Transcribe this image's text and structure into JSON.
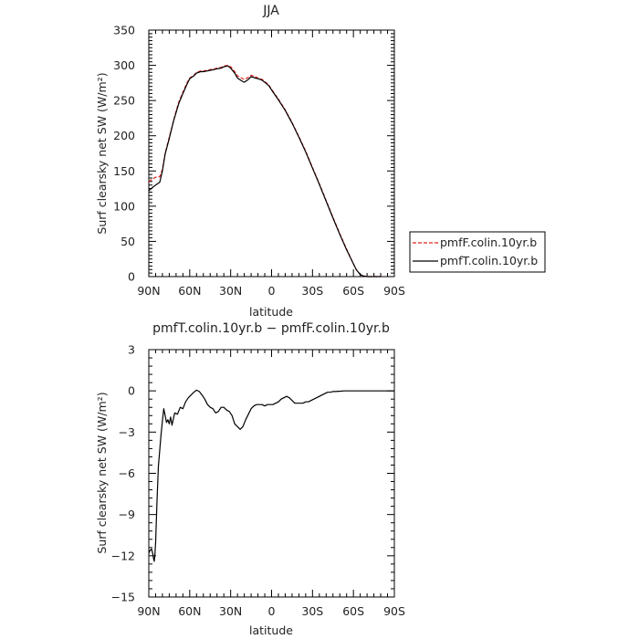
{
  "chart_data": [
    {
      "type": "line",
      "title": "JJA",
      "xlabel": "latitude",
      "ylabel": "Surf clearsky net SW (W/m²)",
      "xlim": [
        90,
        -90
      ],
      "ylim": [
        0,
        350
      ],
      "xticks": [
        90,
        60,
        30,
        0,
        -30,
        -60,
        -90
      ],
      "xtick_labels": [
        "90N",
        "60N",
        "30N",
        "0",
        "30S",
        "60S",
        "90S"
      ],
      "yticks": [
        0,
        50,
        100,
        150,
        200,
        250,
        300,
        350
      ],
      "ytick_labels": [
        "0",
        "50",
        "100",
        "150",
        "200",
        "250",
        "300",
        "350"
      ],
      "grid": false,
      "legend_position": "right",
      "series": [
        {
          "name": "pmfF.colin.10yr.b",
          "color": "#e0201c",
          "dash": "dashed",
          "x": [
            90,
            87,
            85,
            82,
            80,
            78,
            75,
            72,
            70,
            68,
            65,
            62,
            60,
            57,
            55,
            52,
            50,
            47,
            45,
            42,
            40,
            37,
            35,
            32,
            30,
            27,
            25,
            22,
            20,
            17,
            15,
            12,
            10,
            7,
            5,
            2,
            0,
            -5,
            -10,
            -15,
            -20,
            -25,
            -30,
            -35,
            -40,
            -45,
            -50,
            -55,
            -60,
            -62,
            -65,
            -67,
            -70,
            -72,
            -75,
            -78,
            -80
          ],
          "y": [
            135,
            139,
            141,
            142,
            152,
            175,
            198,
            220,
            235,
            248,
            262,
            275,
            282,
            286,
            290,
            292,
            292,
            293,
            294,
            295,
            296,
            297,
            299,
            300,
            298,
            291,
            285,
            282,
            280,
            283,
            286,
            284,
            282,
            280,
            277,
            272,
            266,
            252,
            237,
            219,
            199,
            178,
            155,
            132,
            108,
            84,
            61,
            39,
            18,
            10,
            3,
            1,
            0,
            0,
            0,
            0,
            0
          ]
        },
        {
          "name": "pmfT.colin.10yr.b",
          "color": "#000000",
          "dash": "solid",
          "x": [
            90,
            87,
            85,
            82,
            80,
            78,
            75,
            72,
            70,
            68,
            65,
            62,
            60,
            57,
            55,
            52,
            50,
            47,
            45,
            42,
            40,
            37,
            35,
            32,
            30,
            27,
            25,
            22,
            20,
            17,
            15,
            12,
            10,
            7,
            5,
            2,
            0,
            -5,
            -10,
            -15,
            -20,
            -25,
            -30,
            -35,
            -40,
            -45,
            -50,
            -55,
            -60,
            -62,
            -65,
            -67,
            -70,
            -72,
            -75,
            -78,
            -80
          ],
          "y": [
            122,
            127,
            130,
            134,
            150,
            174,
            196,
            220,
            233,
            246,
            260,
            273,
            281,
            285,
            289,
            291,
            291,
            292,
            293,
            294,
            295,
            296,
            298,
            299,
            296,
            289,
            282,
            278,
            276,
            280,
            284,
            282,
            281,
            279,
            276,
            271,
            265,
            251,
            236,
            218,
            198,
            177,
            154,
            131,
            107,
            83,
            60,
            38,
            18,
            10,
            3,
            1,
            0,
            0,
            0,
            0,
            0
          ]
        }
      ]
    },
    {
      "type": "line",
      "title": "pmfT.colin.10yr.b − pmfF.colin.10yr.b",
      "xlabel": "latitude",
      "ylabel": "Surf clearsky net SW (W/m²)",
      "xlim": [
        90,
        -90
      ],
      "ylim": [
        -15,
        3
      ],
      "xticks": [
        90,
        60,
        30,
        0,
        -30,
        -60,
        -90
      ],
      "xtick_labels": [
        "90N",
        "60N",
        "30N",
        "0",
        "30S",
        "60S",
        "90S"
      ],
      "yticks": [
        -15,
        -12,
        -9,
        -6,
        -3,
        0,
        3
      ],
      "ytick_labels": [
        "−15",
        "−12",
        "−9",
        "−6",
        "−3",
        "0",
        "3"
      ],
      "grid": false,
      "series": [
        {
          "color": "#000000",
          "dash": "solid",
          "x": [
            90,
            89,
            88,
            87,
            86.5,
            86,
            85.5,
            85,
            84,
            83,
            82,
            81,
            80,
            79,
            78,
            77,
            76,
            75,
            74,
            73,
            71,
            69,
            67,
            65,
            63,
            61,
            59,
            57,
            55,
            53,
            51,
            49,
            47,
            45,
            43,
            41,
            39,
            37,
            35,
            33,
            31,
            29,
            27,
            25,
            23,
            21,
            19,
            17,
            15,
            13,
            11,
            9,
            7,
            5,
            3,
            1,
            -1,
            -3,
            -5,
            -7,
            -9,
            -11,
            -13,
            -15,
            -17,
            -19,
            -21,
            -23,
            -25,
            -27,
            -29,
            -31,
            -33,
            -35,
            -37,
            -39,
            -41,
            -43,
            -45,
            -47,
            -49,
            -51,
            -53,
            -55,
            -57,
            -60,
            -65,
            -70,
            -75,
            -80,
            -85,
            -90
          ],
          "y": [
            -11.8,
            -11.6,
            -11.5,
            -11.9,
            -12.2,
            -12.4,
            -11.9,
            -11.0,
            -8.0,
            -5.5,
            -4.3,
            -3.2,
            -2.2,
            -1.3,
            -1.8,
            -2.3,
            -2.1,
            -2.4,
            -1.9,
            -2.5,
            -1.6,
            -1.7,
            -1.2,
            -1.3,
            -0.8,
            -0.5,
            -0.3,
            -0.1,
            0.05,
            -0.05,
            -0.3,
            -0.6,
            -1.0,
            -1.2,
            -1.3,
            -1.6,
            -1.5,
            -1.2,
            -1.2,
            -1.4,
            -1.5,
            -1.8,
            -2.4,
            -2.6,
            -2.8,
            -2.6,
            -2.1,
            -1.7,
            -1.3,
            -1.1,
            -1.0,
            -1.0,
            -1.0,
            -1.1,
            -1.0,
            -1.0,
            -1.0,
            -0.9,
            -0.8,
            -0.6,
            -0.5,
            -0.4,
            -0.5,
            -0.7,
            -0.9,
            -0.9,
            -0.9,
            -0.9,
            -0.8,
            -0.8,
            -0.7,
            -0.6,
            -0.5,
            -0.4,
            -0.3,
            -0.2,
            -0.1,
            -0.1,
            -0.05,
            -0.05,
            -0.03,
            -0.02,
            0,
            0,
            0,
            0,
            0,
            0,
            0,
            0,
            0,
            0
          ]
        }
      ]
    }
  ]
}
